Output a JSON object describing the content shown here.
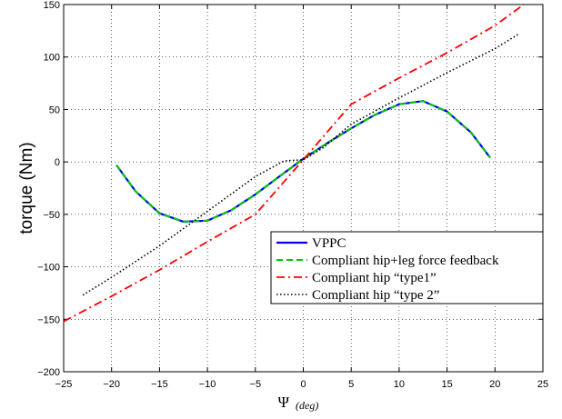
{
  "chart_data": {
    "type": "line",
    "title": "",
    "xlabel": "Ψ",
    "xlabel_unit": "(deg)",
    "ylabel": "torque (Nm)",
    "xlim": [
      -25,
      25
    ],
    "ylim": [
      -200,
      150
    ],
    "x_ticks": [
      "−25",
      "−20",
      "−15",
      "−10",
      "−5",
      "0",
      "5",
      "10",
      "15",
      "20",
      "25"
    ],
    "y_ticks": [
      "−200",
      "−150",
      "−100",
      "−50",
      "0",
      "50",
      "100",
      "150"
    ],
    "grid": true,
    "legend_position": "lower-right",
    "series": [
      {
        "name": "VPPC",
        "color": "#0000ff",
        "style": "solid",
        "x": [
          -19.5,
          -17.5,
          -15,
          -12.5,
          -10,
          -7.5,
          -5,
          -2.5,
          0,
          2.5,
          5,
          7.5,
          10,
          12.5,
          15,
          17.5,
          19.5
        ],
        "y": [
          -3,
          -28,
          -49,
          -57,
          -56,
          -46,
          -31,
          -14,
          3,
          18,
          32,
          45,
          55,
          58,
          48,
          28,
          4
        ]
      },
      {
        "name": "Compliant hip+leg force feedback",
        "color": "#00cc00",
        "style": "dashed",
        "x": [
          -19.5,
          -17.5,
          -15,
          -12.5,
          -10,
          -7.5,
          -5,
          -2.5,
          0,
          2.5,
          5,
          7.5,
          10,
          12.5,
          15,
          17.5,
          19.5
        ],
        "y": [
          -3,
          -28,
          -49,
          -57,
          -56,
          -46,
          -31,
          -14,
          3,
          18,
          32,
          45,
          55,
          58,
          48,
          28,
          4
        ]
      },
      {
        "name": "Compliant hip “type1”",
        "color": "#ff0000",
        "style": "dashdot",
        "x": [
          -25,
          -20,
          -15,
          -10,
          -5,
          0,
          5,
          10,
          15,
          20,
          23
        ],
        "y": [
          -152,
          -128,
          -103,
          -76,
          -50,
          2,
          55,
          80,
          104,
          130,
          150
        ]
      },
      {
        "name": "Compliant hip “type 2”",
        "color": "#000000",
        "style": "dotted",
        "x": [
          -23,
          -20,
          -15,
          -10,
          -5,
          -2,
          0,
          2,
          5,
          10,
          15,
          20,
          22.5
        ],
        "y": [
          -127,
          -110,
          -80,
          -47,
          -14,
          1,
          2,
          13,
          36,
          61,
          85,
          108,
          122
        ]
      }
    ]
  }
}
